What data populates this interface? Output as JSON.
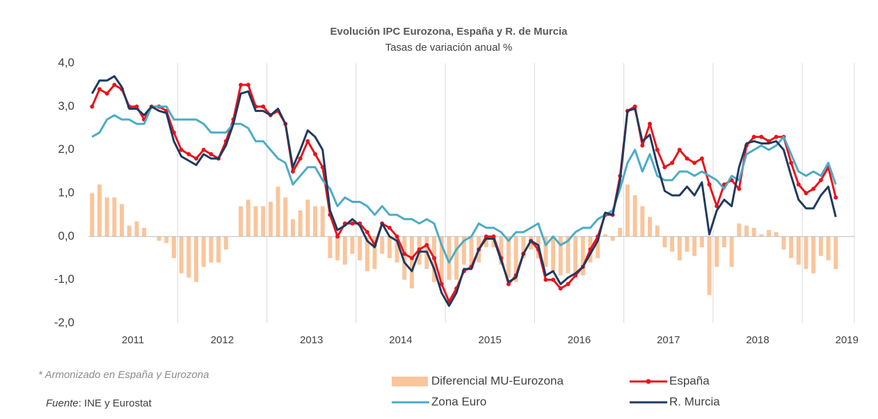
{
  "chart_data": {
    "type": "line",
    "title": "Evolución IPC Eurozona, España y R. de Murcia",
    "subtitle": "Tasas de variación anual %",
    "categories": [
      null,
      null,
      null,
      null,
      null,
      null,
      "2011",
      null,
      null,
      null,
      null,
      null,
      null,
      null,
      null,
      null,
      null,
      null,
      "2012",
      null,
      null,
      null,
      null,
      null,
      null,
      null,
      null,
      null,
      null,
      null,
      "2013",
      null,
      null,
      null,
      null,
      null,
      null,
      null,
      null,
      null,
      null,
      null,
      "2014",
      null,
      null,
      null,
      null,
      null,
      null,
      null,
      null,
      null,
      null,
      null,
      "2015",
      null,
      null,
      null,
      null,
      null,
      null,
      null,
      null,
      null,
      null,
      null,
      "2016",
      null,
      null,
      null,
      null,
      null,
      null,
      null,
      null,
      null,
      null,
      null,
      "2017",
      null,
      null,
      null,
      null,
      null,
      null,
      null,
      null,
      null,
      null,
      null,
      "2018",
      null,
      null,
      null,
      null,
      null,
      null,
      null,
      null,
      null,
      null,
      null,
      "2019"
    ],
    "ylim": [
      -2,
      4
    ],
    "yticks": [
      {
        "value": -2,
        "label": "-2,0"
      },
      {
        "value": -1,
        "label": "-1,0"
      },
      {
        "value": 0,
        "label": "0,0"
      },
      {
        "value": 1,
        "label": "1,0"
      },
      {
        "value": 2,
        "label": "2,0"
      },
      {
        "value": 3,
        "label": "3,0"
      },
      {
        "value": 4,
        "label": "4,0"
      }
    ],
    "grid": false,
    "series": [
      {
        "name": "Diferencial MU-Eurozona",
        "type": "bar",
        "color": "#f9c59b",
        "values": [
          1.0,
          1.2,
          0.9,
          0.9,
          0.75,
          0.25,
          0.35,
          0.2,
          0.0,
          -0.1,
          -0.15,
          -0.5,
          -0.85,
          -0.95,
          -1.05,
          -0.7,
          -0.6,
          -0.6,
          -0.3,
          0.0,
          0.7,
          0.85,
          0.7,
          0.7,
          0.8,
          1.15,
          0.9,
          0.4,
          0.6,
          0.85,
          0.7,
          0.7,
          -0.5,
          -0.55,
          -0.65,
          -0.4,
          -0.55,
          -0.8,
          -0.75,
          -0.4,
          -0.5,
          -0.6,
          -1.0,
          -1.2,
          -0.65,
          -0.75,
          -1.05,
          -1.1,
          -1.0,
          -1.0,
          -0.65,
          -0.75,
          -0.6,
          -0.25,
          -0.25,
          -0.65,
          -0.95,
          -1.05,
          -0.5,
          -0.3,
          -0.5,
          -0.7,
          -0.8,
          -0.9,
          -0.85,
          -0.95,
          -0.9,
          -0.6,
          -0.5,
          0.05,
          -0.1,
          0.2,
          1.2,
          0.95,
          0.7,
          0.45,
          0.25,
          -0.25,
          -0.35,
          -0.55,
          -0.35,
          -0.45,
          -0.25,
          -1.35,
          -0.7,
          -0.25,
          -0.7,
          0.3,
          0.25,
          0.2,
          0.05,
          0.15,
          0.1,
          -0.3,
          -0.5,
          -0.65,
          -0.75,
          -0.85,
          -0.45,
          -0.55,
          -0.75,
          null,
          null
        ]
      },
      {
        "name": "España",
        "type": "line",
        "markers": true,
        "color": "#e8141c",
        "values": [
          3.0,
          3.4,
          3.3,
          3.5,
          3.4,
          3.0,
          3.0,
          2.7,
          3.0,
          3.0,
          2.9,
          2.4,
          2.0,
          1.9,
          1.8,
          2.0,
          1.9,
          1.8,
          2.2,
          2.7,
          3.5,
          3.5,
          3.0,
          3.0,
          2.8,
          2.9,
          2.6,
          1.5,
          1.8,
          2.2,
          1.9,
          1.6,
          0.5,
          0.0,
          0.3,
          0.3,
          0.3,
          0.1,
          -0.2,
          0.3,
          0.2,
          0.0,
          -0.4,
          -0.5,
          -0.3,
          -0.2,
          -0.5,
          -1.1,
          -1.5,
          -1.2,
          -0.8,
          -0.7,
          -0.3,
          0.0,
          0.0,
          -0.5,
          -1.1,
          -0.9,
          -0.4,
          -0.1,
          -0.3,
          -1.0,
          -1.0,
          -1.2,
          -1.1,
          -0.9,
          -0.7,
          -0.3,
          0.0,
          0.5,
          0.5,
          1.4,
          2.9,
          3.0,
          2.1,
          2.6,
          2.0,
          1.6,
          1.7,
          2.0,
          1.8,
          1.7,
          1.8,
          1.2,
          0.7,
          1.2,
          1.3,
          1.1,
          2.1,
          2.3,
          2.3,
          2.2,
          2.3,
          2.3,
          1.7,
          1.2,
          1.0,
          1.1,
          1.3,
          1.6,
          0.9,
          null,
          null
        ]
      },
      {
        "name": "Zona Euro",
        "type": "line",
        "color": "#4bacc6",
        "values": [
          2.3,
          2.4,
          2.7,
          2.8,
          2.7,
          2.7,
          2.6,
          2.6,
          3.0,
          3.0,
          3.0,
          2.7,
          2.7,
          2.7,
          2.7,
          2.6,
          2.4,
          2.4,
          2.4,
          2.6,
          2.6,
          2.5,
          2.2,
          2.2,
          2.0,
          1.8,
          1.7,
          1.2,
          1.4,
          1.6,
          1.6,
          1.3,
          1.1,
          0.7,
          0.9,
          0.8,
          0.8,
          0.7,
          0.5,
          0.7,
          0.5,
          0.5,
          0.4,
          0.4,
          0.3,
          0.4,
          0.3,
          -0.2,
          -0.6,
          -0.3,
          -0.1,
          0.0,
          0.3,
          0.2,
          0.2,
          0.1,
          -0.1,
          0.1,
          0.1,
          0.2,
          0.3,
          -0.2,
          0.0,
          -0.2,
          -0.1,
          0.1,
          0.2,
          0.2,
          0.4,
          0.5,
          0.6,
          1.1,
          1.7,
          2.0,
          1.5,
          1.9,
          1.4,
          1.3,
          1.3,
          1.5,
          1.5,
          1.4,
          1.5,
          1.4,
          1.3,
          1.1,
          1.4,
          1.3,
          1.9,
          2.0,
          2.1,
          2.0,
          2.1,
          2.3,
          1.9,
          1.5,
          1.4,
          1.5,
          1.4,
          1.7,
          1.2,
          null,
          null
        ]
      },
      {
        "name": "R. Murcia",
        "type": "line",
        "color": "#1f3a5f",
        "values": [
          3.3,
          3.6,
          3.6,
          3.7,
          3.45,
          2.95,
          2.95,
          2.8,
          3.0,
          2.9,
          2.85,
          2.2,
          1.85,
          1.75,
          1.65,
          1.9,
          1.8,
          1.8,
          2.1,
          2.6,
          3.3,
          3.35,
          2.9,
          2.9,
          2.8,
          2.95,
          2.6,
          1.6,
          2.0,
          2.45,
          2.3,
          2.0,
          0.6,
          0.15,
          0.25,
          0.4,
          0.25,
          -0.1,
          -0.25,
          0.3,
          0.0,
          -0.1,
          -0.6,
          -0.8,
          -0.35,
          -0.35,
          -0.75,
          -1.3,
          -1.6,
          -1.3,
          -0.75,
          -0.75,
          -0.3,
          -0.05,
          -0.05,
          -0.55,
          -1.05,
          -0.95,
          -0.4,
          -0.1,
          -0.2,
          -0.9,
          -0.8,
          -1.1,
          -0.95,
          -0.85,
          -0.7,
          -0.4,
          -0.1,
          0.55,
          0.5,
          1.3,
          2.9,
          2.95,
          2.2,
          2.35,
          1.65,
          1.05,
          0.95,
          0.95,
          1.15,
          0.95,
          1.25,
          0.05,
          0.6,
          0.85,
          0.7,
          1.6,
          2.15,
          2.2,
          2.15,
          2.15,
          2.2,
          2.0,
          1.4,
          0.85,
          0.65,
          0.65,
          0.95,
          1.15,
          0.45,
          null,
          null
        ]
      }
    ],
    "note": "* Armonizado en España y Eurozona",
    "source_label": "Fuente",
    "source_text": ": INE y Eurostat"
  }
}
